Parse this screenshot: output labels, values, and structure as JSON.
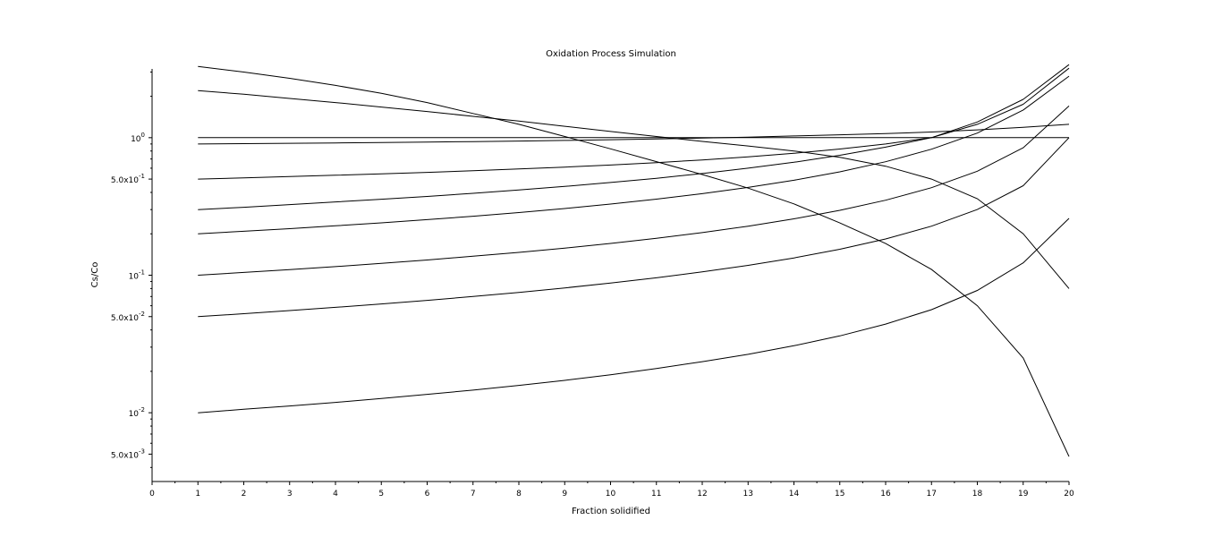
{
  "chart_data": {
    "type": "line",
    "title": "Oxidation Process Simulation",
    "xlabel": "Fraction solidified",
    "ylabel": "Cs/Co",
    "xlim": [
      0,
      20
    ],
    "ylim_log10": [
      -2.5,
      0.5
    ],
    "yscale": "log",
    "grid": false,
    "legend": "none",
    "x_ticks": [
      "0",
      "1",
      "2",
      "3",
      "4",
      "5",
      "6",
      "7",
      "8",
      "9",
      "10",
      "11",
      "12",
      "13",
      "14",
      "15",
      "16",
      "17",
      "18",
      "19",
      "20"
    ],
    "y_ticks": [
      {
        "value": 1,
        "mantissa": "",
        "exp": "0"
      },
      {
        "value": 0.5,
        "mantissa": "5.0x",
        "exp": "-1"
      },
      {
        "value": 0.1,
        "mantissa": "",
        "exp": "-1"
      },
      {
        "value": 0.05,
        "mantissa": "5.0x",
        "exp": "-2"
      },
      {
        "value": 0.01,
        "mantissa": "",
        "exp": "-2"
      },
      {
        "value": 0.005,
        "mantissa": "5.0x",
        "exp": "-3"
      }
    ],
    "x": [
      1,
      2,
      3,
      4,
      5,
      6,
      7,
      8,
      9,
      10,
      11,
      12,
      13,
      14,
      15,
      16,
      17,
      18,
      19,
      20
    ],
    "series": [
      {
        "values": [
          0.01,
          0.0106,
          0.0112,
          0.0119,
          0.0127,
          0.0136,
          0.0146,
          0.0158,
          0.0172,
          0.0189,
          0.021,
          0.0235,
          0.0266,
          0.0307,
          0.0362,
          0.0441,
          0.0562,
          0.0775,
          0.1229,
          0.259
        ]
      },
      {
        "values": [
          0.05,
          0.0525,
          0.0553,
          0.0584,
          0.0618,
          0.0656,
          0.07,
          0.075,
          0.0808,
          0.0877,
          0.0958,
          0.1057,
          0.1179,
          0.1336,
          0.1544,
          0.1835,
          0.2273,
          0.3003,
          0.4472,
          1.0
        ]
      },
      {
        "values": [
          0.1,
          0.1047,
          0.1098,
          0.1155,
          0.1219,
          0.1291,
          0.1373,
          0.1466,
          0.1575,
          0.1703,
          0.1855,
          0.2041,
          0.2273,
          0.2569,
          0.2962,
          0.3509,
          0.4332,
          0.5704,
          0.8448,
          1.7
        ]
      },
      {
        "values": [
          0.2,
          0.2087,
          0.2181,
          0.2286,
          0.2403,
          0.2534,
          0.2684,
          0.2855,
          0.3055,
          0.329,
          0.3572,
          0.3917,
          0.4349,
          0.4906,
          0.5647,
          0.6682,
          0.8243,
          1.08,
          1.59,
          2.8
        ]
      },
      {
        "values": [
          0.3,
          0.312,
          0.326,
          0.341,
          0.357,
          0.374,
          0.394,
          0.417,
          0.442,
          0.472,
          0.507,
          0.549,
          0.6,
          0.663,
          0.745,
          0.853,
          1.0,
          1.25,
          1.75,
          3.2
        ]
      },
      {
        "values": [
          0.5,
          0.51,
          0.521,
          0.533,
          0.546,
          0.559,
          0.575,
          0.592,
          0.611,
          0.633,
          0.659,
          0.689,
          0.725,
          0.77,
          0.827,
          0.9,
          1.0,
          1.3,
          1.9,
          3.4
        ]
      },
      {
        "values": [
          1.0,
          1.0,
          1.0,
          1.0,
          1.0,
          1.0,
          1.0,
          1.0,
          1.0,
          1.0,
          1.0,
          1.0,
          1.0,
          1.0,
          1.0,
          1.0,
          1.0,
          1.0,
          1.0,
          1.0
        ]
      },
      {
        "values": [
          0.9,
          0.905,
          0.91,
          0.916,
          0.922,
          0.929,
          0.937,
          0.945,
          0.955,
          0.966,
          0.978,
          0.993,
          1.01,
          1.03,
          1.05,
          1.07,
          1.1,
          1.14,
          1.19,
          1.25
        ]
      },
      {
        "values": [
          2.2,
          2.07,
          1.93,
          1.8,
          1.67,
          1.55,
          1.43,
          1.32,
          1.21,
          1.11,
          1.02,
          0.94,
          0.87,
          0.8,
          0.72,
          0.62,
          0.5,
          0.36,
          0.2,
          0.08
        ]
      },
      {
        "values": [
          3.3,
          3.0,
          2.7,
          2.4,
          2.1,
          1.8,
          1.5,
          1.25,
          1.02,
          0.83,
          0.67,
          0.54,
          0.43,
          0.33,
          0.24,
          0.17,
          0.11,
          0.06,
          0.025,
          0.0048
        ]
      }
    ]
  }
}
